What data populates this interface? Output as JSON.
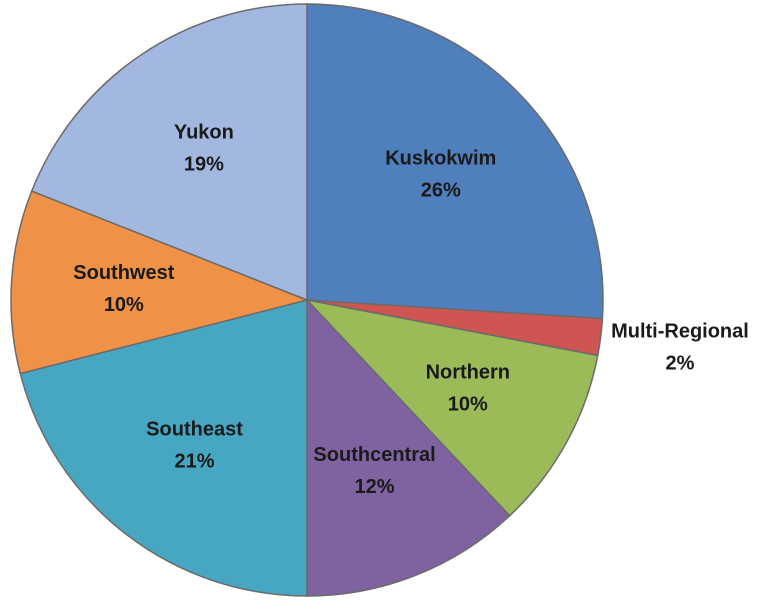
{
  "chart_data": {
    "type": "pie",
    "categories": [
      "Kuskokwim",
      "Multi-Regional",
      "Northern",
      "Southcentral",
      "Southeast",
      "Southwest",
      "Yukon"
    ],
    "values": [
      26,
      2,
      10,
      12,
      21,
      10,
      19
    ],
    "value_labels": [
      "26%",
      "2%",
      "10%",
      "12%",
      "21%",
      "10%",
      "19%"
    ],
    "colors": [
      "#4f7fbc",
      "#cf5552",
      "#9bbb59",
      "#7f62a0",
      "#47a7c2",
      "#ef9247",
      "#a3b8e0"
    ]
  }
}
